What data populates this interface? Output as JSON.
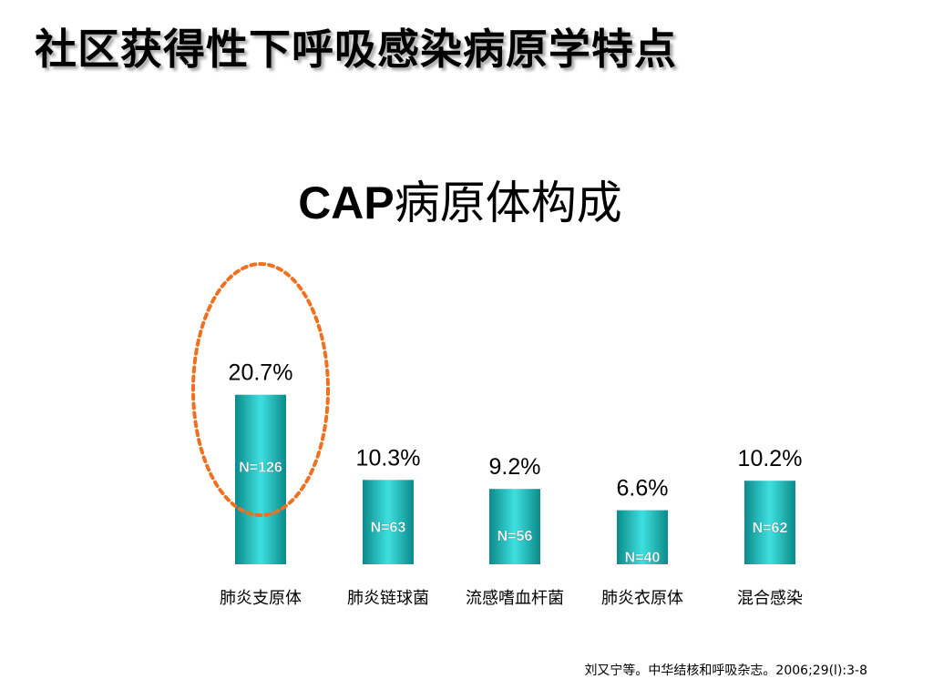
{
  "slide": {
    "title": "社区获得性下呼吸感染病原学特点",
    "citation": "刘又宁等。中华结核和呼吸杂志。2006;29(l):3-8"
  },
  "chart_data": {
    "type": "bar",
    "title_latin": "CAP",
    "title_cjk": "病原体构成",
    "categories": [
      "肺炎支原体",
      "肺炎链球菌",
      "流感嗜血杆菌",
      "肺炎衣原体",
      "混合感染"
    ],
    "values": [
      20.7,
      10.3,
      9.2,
      6.6,
      10.2
    ],
    "value_labels": [
      "20.7%",
      "10.3%",
      "9.2%",
      "6.6%",
      "10.2%"
    ],
    "n_labels": [
      "N=126",
      "N=63",
      "N=56",
      "N=40",
      "N=62"
    ],
    "unit": "%",
    "ylim": [
      0,
      22
    ],
    "grid": false,
    "highlight_index": 0,
    "colors": {
      "bar_edge": "#0b8a8a",
      "bar_mid": "#3fe0e0",
      "n_label": "#ffffff",
      "highlight": "#f07020"
    }
  }
}
